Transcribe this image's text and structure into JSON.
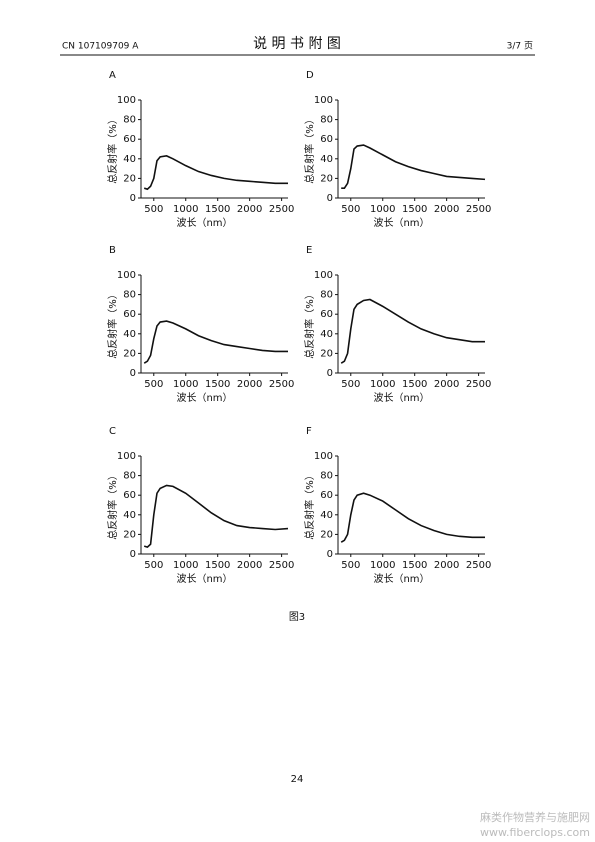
{
  "header": {
    "doc_number": "CN 107109709 A",
    "title": "说 明 书 附 图",
    "page_of": "3/7 页"
  },
  "chart_data": [
    {
      "type": "line",
      "panel": "A",
      "ylabel": "总反射率（%）",
      "xlabel": "波长（nm）",
      "x": [
        350,
        400,
        450,
        500,
        550,
        600,
        700,
        800,
        1000,
        1200,
        1400,
        1600,
        1800,
        2000,
        2200,
        2400,
        2600
      ],
      "values": [
        10,
        9,
        12,
        20,
        38,
        42,
        43,
        40,
        33,
        27,
        23,
        20,
        18,
        17,
        16,
        15,
        15
      ],
      "color": "#111111",
      "xlim": [
        300,
        2600
      ],
      "xticks": [
        500,
        1000,
        1500,
        2000,
        2500
      ],
      "ylim": [
        0,
        100
      ],
      "yticks": [
        0,
        20,
        40,
        60,
        80,
        100
      ]
    },
    {
      "type": "line",
      "panel": "D",
      "ylabel": "总反射率（%）",
      "xlabel": "波长（nm）",
      "x": [
        350,
        400,
        450,
        500,
        550,
        600,
        700,
        800,
        1000,
        1200,
        1400,
        1600,
        1800,
        2000,
        2200,
        2400,
        2600
      ],
      "values": [
        10,
        10,
        15,
        30,
        50,
        53,
        54,
        51,
        44,
        37,
        32,
        28,
        25,
        22,
        21,
        20,
        19
      ],
      "color": "#111111",
      "xlim": [
        300,
        2600
      ],
      "xticks": [
        500,
        1000,
        1500,
        2000,
        2500
      ],
      "ylim": [
        0,
        100
      ],
      "yticks": [
        0,
        20,
        40,
        60,
        80,
        100
      ]
    },
    {
      "type": "line",
      "panel": "B",
      "ylabel": "总反射率（%）",
      "xlabel": "波长（nm）",
      "x": [
        350,
        400,
        450,
        500,
        550,
        600,
        700,
        800,
        1000,
        1200,
        1400,
        1600,
        1800,
        2000,
        2200,
        2400,
        2600
      ],
      "values": [
        10,
        12,
        18,
        35,
        48,
        52,
        53,
        51,
        45,
        38,
        33,
        29,
        27,
        25,
        23,
        22,
        22
      ],
      "color": "#111111",
      "xlim": [
        300,
        2600
      ],
      "xticks": [
        500,
        1000,
        1500,
        2000,
        2500
      ],
      "ylim": [
        0,
        100
      ],
      "yticks": [
        0,
        20,
        40,
        60,
        80,
        100
      ]
    },
    {
      "type": "line",
      "panel": "E",
      "ylabel": "总反射率（%）",
      "xlabel": "波长（nm）",
      "x": [
        350,
        400,
        450,
        500,
        550,
        600,
        700,
        800,
        1000,
        1200,
        1400,
        1600,
        1800,
        2000,
        2200,
        2400,
        2600
      ],
      "values": [
        10,
        12,
        20,
        45,
        65,
        70,
        74,
        75,
        68,
        60,
        52,
        45,
        40,
        36,
        34,
        32,
        32
      ],
      "color": "#111111",
      "xlim": [
        300,
        2600
      ],
      "xticks": [
        500,
        1000,
        1500,
        2000,
        2500
      ],
      "ylim": [
        0,
        100
      ],
      "yticks": [
        0,
        20,
        40,
        60,
        80,
        100
      ]
    },
    {
      "type": "line",
      "panel": "C",
      "ylabel": "总反射率（%）",
      "xlabel": "波长（nm）",
      "x": [
        350,
        400,
        450,
        500,
        550,
        600,
        700,
        800,
        1000,
        1200,
        1400,
        1600,
        1800,
        2000,
        2200,
        2400,
        2600
      ],
      "values": [
        8,
        7,
        10,
        40,
        62,
        67,
        70,
        69,
        62,
        52,
        42,
        34,
        29,
        27,
        26,
        25,
        26
      ],
      "color": "#111111",
      "xlim": [
        300,
        2600
      ],
      "xticks": [
        500,
        1000,
        1500,
        2000,
        2500
      ],
      "ylim": [
        0,
        100
      ],
      "yticks": [
        0,
        20,
        40,
        60,
        80,
        100
      ]
    },
    {
      "type": "line",
      "panel": "F",
      "ylabel": "总反射率（%）",
      "xlabel": "波长（nm）",
      "x": [
        350,
        400,
        450,
        500,
        550,
        600,
        700,
        800,
        1000,
        1200,
        1400,
        1600,
        1800,
        2000,
        2200,
        2400,
        2600
      ],
      "values": [
        12,
        14,
        20,
        40,
        55,
        60,
        62,
        60,
        54,
        45,
        36,
        29,
        24,
        20,
        18,
        17,
        17
      ],
      "color": "#111111",
      "xlim": [
        300,
        2600
      ],
      "xticks": [
        500,
        1000,
        1500,
        2000,
        2500
      ],
      "ylim": [
        0,
        100
      ],
      "yticks": [
        0,
        20,
        40,
        60,
        80,
        100
      ]
    }
  ],
  "figure_caption": "图3",
  "page_number": "24",
  "watermark": {
    "name": "麻类作物营养与施肥网",
    "url": "www.fiberclops.com"
  }
}
